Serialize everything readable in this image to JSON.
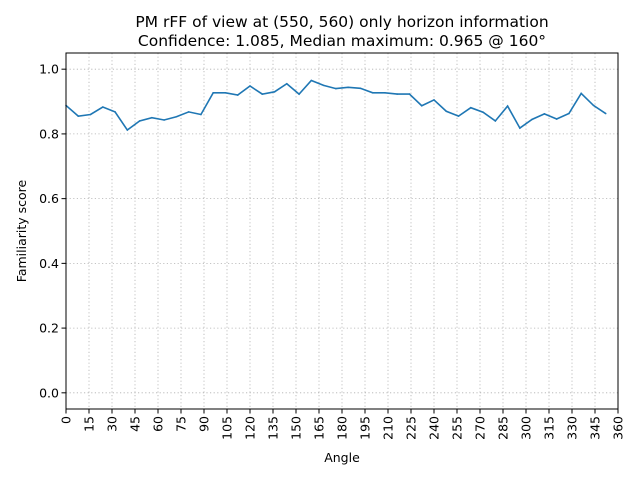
{
  "chart_data": {
    "type": "line",
    "title": "PM rFF of view at (550, 560) only horizon information",
    "subtitle": "Confidence: 1.085, Median maximum: 0.965 @ 160°",
    "xlabel": "Angle",
    "ylabel": "Familiarity score",
    "xlim": [
      0,
      360
    ],
    "ylim": [
      -0.05,
      1.05
    ],
    "grid": true,
    "x_ticks": [
      0,
      15,
      30,
      45,
      60,
      75,
      90,
      105,
      120,
      135,
      150,
      165,
      180,
      195,
      210,
      225,
      240,
      255,
      270,
      285,
      300,
      315,
      330,
      345,
      360
    ],
    "y_ticks": [
      0.0,
      0.2,
      0.4,
      0.6,
      0.8,
      1.0
    ],
    "y_tick_labels": [
      "0.0",
      "0.2",
      "0.4",
      "0.6",
      "0.8",
      "1.0"
    ],
    "series": [
      {
        "color": "#1f77b4",
        "x": [
          0,
          8,
          16,
          24,
          32,
          40,
          48,
          56,
          64,
          72,
          80,
          88,
          96,
          104,
          112,
          120,
          128,
          136,
          144,
          152,
          160,
          168,
          176,
          184,
          192,
          200,
          208,
          216,
          224,
          232,
          240,
          248,
          256,
          264,
          272,
          280,
          288,
          296,
          304,
          312,
          320,
          328,
          336,
          344,
          352
        ],
        "y": [
          0.888,
          0.855,
          0.86,
          0.883,
          0.868,
          0.812,
          0.84,
          0.85,
          0.843,
          0.853,
          0.868,
          0.86,
          0.927,
          0.927,
          0.92,
          0.948,
          0.923,
          0.93,
          0.955,
          0.923,
          0.965,
          0.95,
          0.94,
          0.944,
          0.941,
          0.927,
          0.927,
          0.923,
          0.923,
          0.887,
          0.905,
          0.87,
          0.855,
          0.881,
          0.867,
          0.84,
          0.886,
          0.818,
          0.845,
          0.862,
          0.846,
          0.863,
          0.925,
          0.888,
          0.863
        ]
      }
    ]
  }
}
